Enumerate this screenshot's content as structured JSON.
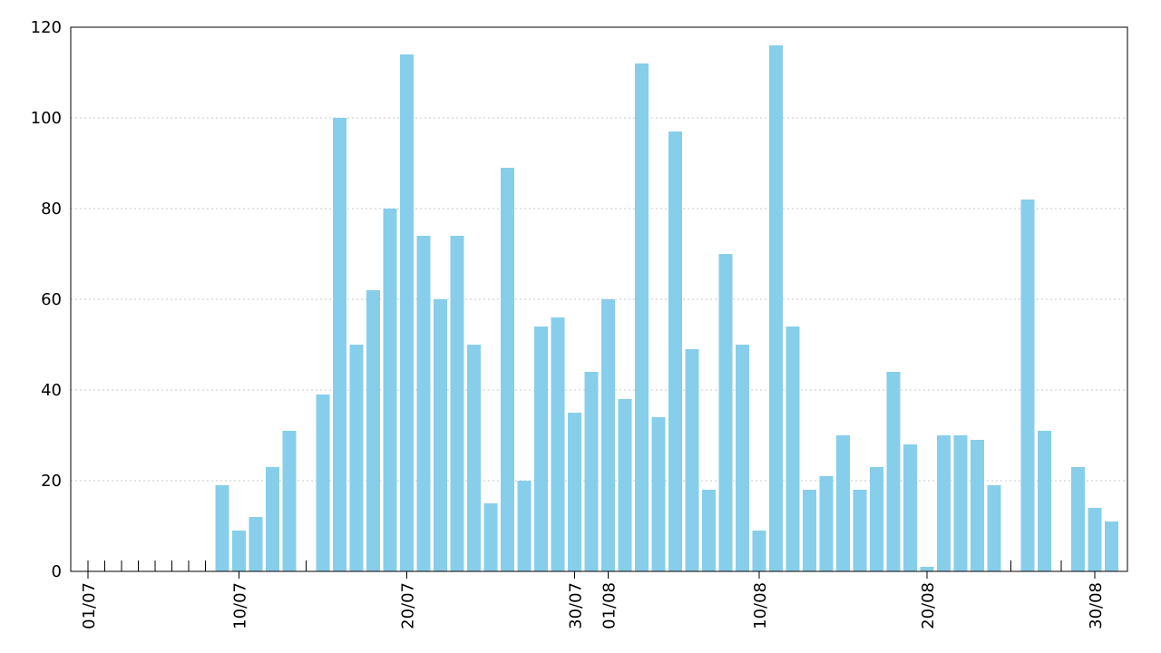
{
  "chart_data": {
    "type": "bar",
    "title": "",
    "xlabel": "",
    "ylabel": "",
    "ylim": [
      0,
      120
    ],
    "yticks": [
      0,
      20,
      40,
      60,
      80,
      100,
      120
    ],
    "grid": "horizontal dotted",
    "bar_color": "#87ceeb",
    "x_tick_labels": [
      "01/07",
      "10/07",
      "20/07",
      "30/07",
      "01/08",
      "10/08",
      "20/08",
      "30/08"
    ],
    "categories": [
      "01/07",
      "02/07",
      "03/07",
      "04/07",
      "05/07",
      "06/07",
      "07/07",
      "08/07",
      "09/07",
      "10/07",
      "11/07",
      "12/07",
      "13/07",
      "14/07",
      "15/07",
      "16/07",
      "17/07",
      "18/07",
      "19/07",
      "20/07",
      "21/07",
      "22/07",
      "23/07",
      "24/07",
      "25/07",
      "26/07",
      "27/07",
      "28/07",
      "29/07",
      "30/07",
      "31/07",
      "01/08",
      "02/08",
      "03/08",
      "04/08",
      "05/08",
      "06/08",
      "07/08",
      "08/08",
      "09/08",
      "10/08",
      "11/08",
      "12/08",
      "13/08",
      "14/08",
      "15/08",
      "16/08",
      "17/08",
      "18/08",
      "19/08",
      "20/08",
      "21/08",
      "22/08",
      "23/08",
      "24/08",
      "25/08",
      "26/08",
      "27/08",
      "28/08",
      "29/08",
      "30/08",
      "31/08"
    ],
    "values": [
      0,
      0,
      0,
      0,
      0,
      0,
      0,
      0,
      19,
      9,
      12,
      23,
      31,
      0,
      39,
      100,
      50,
      62,
      80,
      114,
      74,
      60,
      74,
      50,
      15,
      89,
      20,
      54,
      56,
      35,
      44,
      60,
      38,
      112,
      34,
      97,
      49,
      18,
      70,
      50,
      9,
      116,
      54,
      18,
      21,
      30,
      18,
      23,
      44,
      28,
      1,
      30,
      30,
      29,
      19,
      0,
      82,
      31,
      0,
      23,
      14,
      11
    ]
  }
}
